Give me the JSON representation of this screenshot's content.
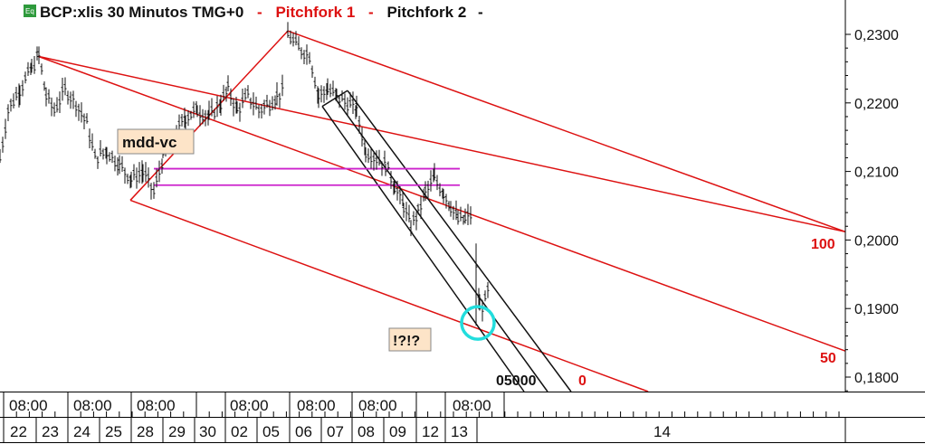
{
  "header": {
    "badge": "Eq",
    "symbol_text": "BCP:xlis 30 Minutos TMG+0",
    "sep": "-",
    "pitchfork1": "Pitchfork 1",
    "pitchfork2": "Pitchfork 2",
    "colors": {
      "pitchfork1": "#dd1111",
      "pitchfork2": "#111111"
    }
  },
  "annotations": {
    "mdd_vc": "mdd-vc",
    "question": "!?!?",
    "level_100": "100",
    "level_50": "50",
    "level_0": "0",
    "level_05000": "05000"
  },
  "chart_data": {
    "type": "candlestick",
    "title": "BCP:xlis 30 Minutos TMG+0",
    "y_axis": {
      "side": "right",
      "range": [
        0.1775,
        0.2345
      ],
      "ticks": [
        "0,2300",
        "0,2200",
        "0,2100",
        "0,2000",
        "0,1900",
        "0,1800"
      ],
      "tick_values": [
        0.23,
        0.22,
        0.21,
        0.2,
        0.19,
        0.18
      ]
    },
    "x_axis": {
      "time_row": [
        "08:00",
        "08:00",
        "08:00",
        "08:00",
        "08:00",
        "08:00",
        "08:00"
      ],
      "date_row": [
        "22",
        "23",
        "24",
        "25",
        "28",
        "29",
        "30",
        "02",
        "05",
        "06",
        "07",
        "08",
        "09",
        "12",
        "13",
        "14"
      ]
    },
    "price_path": [
      [
        0,
        0.212
      ],
      [
        9,
        0.219
      ],
      [
        22,
        0.222
      ],
      [
        35,
        0.225
      ],
      [
        43,
        0.227
      ],
      [
        51,
        0.221
      ],
      [
        60,
        0.219
      ],
      [
        72,
        0.222
      ],
      [
        84,
        0.22
      ],
      [
        96,
        0.217
      ],
      [
        105,
        0.212
      ],
      [
        118,
        0.213
      ],
      [
        132,
        0.211
      ],
      [
        145,
        0.209
      ],
      [
        158,
        0.21
      ],
      [
        170,
        0.207
      ],
      [
        180,
        0.212
      ],
      [
        192,
        0.215
      ],
      [
        205,
        0.218
      ],
      [
        218,
        0.219
      ],
      [
        231,
        0.218
      ],
      [
        244,
        0.22
      ],
      [
        252,
        0.222
      ],
      [
        262,
        0.219
      ],
      [
        274,
        0.221
      ],
      [
        286,
        0.219
      ],
      [
        298,
        0.22
      ],
      [
        306,
        0.221
      ],
      [
        314,
        0.222
      ]
    ],
    "price_path2": [
      [
        318,
        0.23
      ],
      [
        330,
        0.228
      ],
      [
        342,
        0.227
      ],
      [
        352,
        0.221
      ],
      [
        362,
        0.222
      ],
      [
        372,
        0.221
      ],
      [
        384,
        0.22
      ],
      [
        394,
        0.219
      ],
      [
        404,
        0.213
      ],
      [
        416,
        0.212
      ],
      [
        426,
        0.211
      ],
      [
        436,
        0.208
      ],
      [
        446,
        0.205
      ],
      [
        454,
        0.202
      ],
      [
        462,
        0.204
      ],
      [
        470,
        0.207
      ],
      [
        480,
        0.209
      ],
      [
        490,
        0.207
      ],
      [
        498,
        0.205
      ],
      [
        506,
        0.203
      ],
      [
        514,
        0.203
      ],
      [
        522,
        0.204
      ]
    ],
    "price_path3": [
      [
        526,
        0.196
      ],
      [
        530,
        0.19
      ],
      [
        536,
        0.191
      ],
      [
        542,
        0.194
      ]
    ],
    "pitchfork1_lines": [
      {
        "from": [
          42,
          0.2268
        ],
        "to": [
          934,
          0.2012
        ]
      },
      {
        "from": [
          144,
          0.2058
        ],
        "to": [
          318,
          0.2305
        ]
      },
      {
        "from": [
          42,
          0.2268
        ],
        "to": [
          934,
          0.1838
        ]
      },
      {
        "from": [
          144,
          0.2058
        ],
        "to": [
          720,
          0.1777
        ]
      },
      {
        "from": [
          318,
          0.2305
        ],
        "to": [
          934,
          0.2012
        ]
      }
    ],
    "pitchfork2_lines": [
      {
        "from": [
          356,
          0.2195
        ],
        "to": [
          384,
          0.2218
        ]
      },
      {
        "from": [
          356,
          0.2195
        ],
        "to": [
          580,
          0.1777
        ]
      },
      {
        "from": [
          370,
          0.2207
        ],
        "to": [
          606,
          0.1777
        ]
      },
      {
        "from": [
          384,
          0.2218
        ],
        "to": [
          632,
          0.1777
        ]
      }
    ],
    "horizontal_lines": [
      {
        "y": 0.2104,
        "from_x": 170,
        "to_x": 508,
        "color": "#cc22cc"
      },
      {
        "y": 0.208,
        "from_x": 170,
        "to_x": 508,
        "color": "#cc22cc"
      }
    ],
    "highlight_circle": {
      "x": 528,
      "y": 0.1879,
      "color": "#22dddd"
    }
  }
}
